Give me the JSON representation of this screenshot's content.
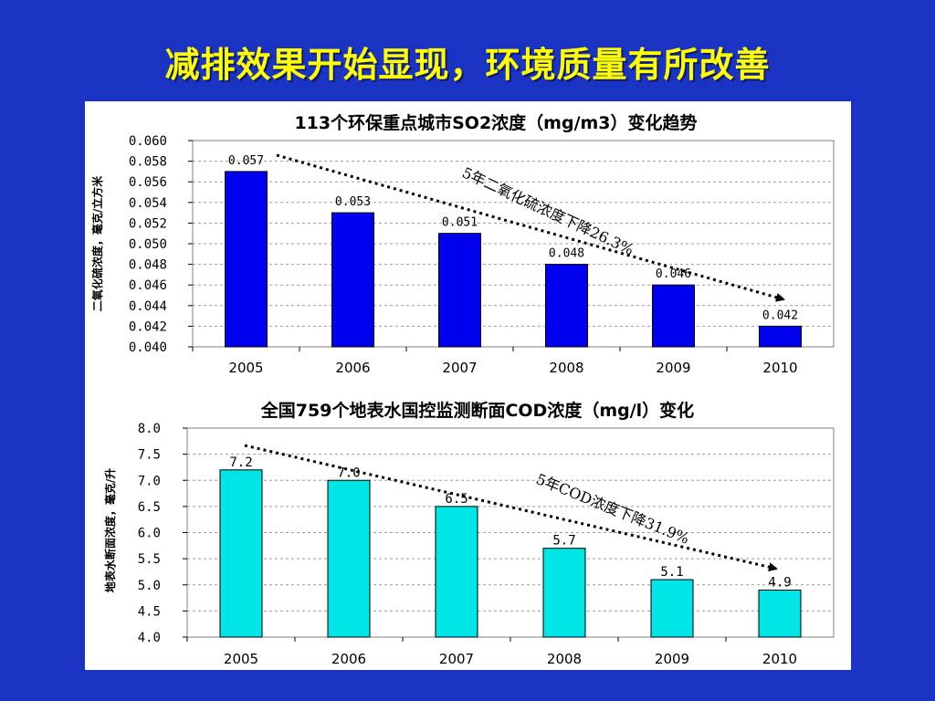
{
  "slide": {
    "title": "减排效果开始显现，环境质量有所改善",
    "background": "#1a33c2",
    "title_color": "#ffff00"
  },
  "chart_data": [
    {
      "type": "bar",
      "title": "113个环保重点城市SO2浓度（mg/m3）变化趋势",
      "ylabel": "二氧化硫浓度，毫克/立方米",
      "xlabel": "",
      "categories": [
        "2005",
        "2006",
        "2007",
        "2008",
        "2009",
        "2010"
      ],
      "values": [
        0.057,
        0.053,
        0.051,
        0.048,
        0.046,
        0.042
      ],
      "value_labels": [
        "0.057",
        "0.053",
        "0.051",
        "0.048",
        "0.046",
        "0.042"
      ],
      "ylim": [
        0.04,
        0.06
      ],
      "yticks": [
        "0.040",
        "0.042",
        "0.044",
        "0.046",
        "0.048",
        "0.050",
        "0.052",
        "0.054",
        "0.056",
        "0.058",
        "0.060"
      ],
      "grid": true,
      "bar_color": "#0000ee",
      "trend_annotation": "5年二氧化硫浓度下降26.3%"
    },
    {
      "type": "bar",
      "title": "全国759个地表水国控监测断面COD浓度（mg/l）变化",
      "ylabel": "地表水断面浓度，毫克/升",
      "xlabel": "",
      "categories": [
        "2005",
        "2006",
        "2007",
        "2008",
        "2009",
        "2010"
      ],
      "values": [
        7.2,
        7.0,
        6.5,
        5.7,
        5.1,
        4.9
      ],
      "value_labels": [
        "7.2",
        "7.0",
        "6.5",
        "5.7",
        "5.1",
        "4.9"
      ],
      "ylim": [
        4.0,
        8.0
      ],
      "yticks": [
        "4.0",
        "4.5",
        "5.0",
        "5.5",
        "6.0",
        "6.5",
        "7.0",
        "7.5",
        "8.0"
      ],
      "grid": true,
      "bar_color": "#00e5e5",
      "trend_annotation": "5年COD浓度下降31.9%"
    }
  ]
}
